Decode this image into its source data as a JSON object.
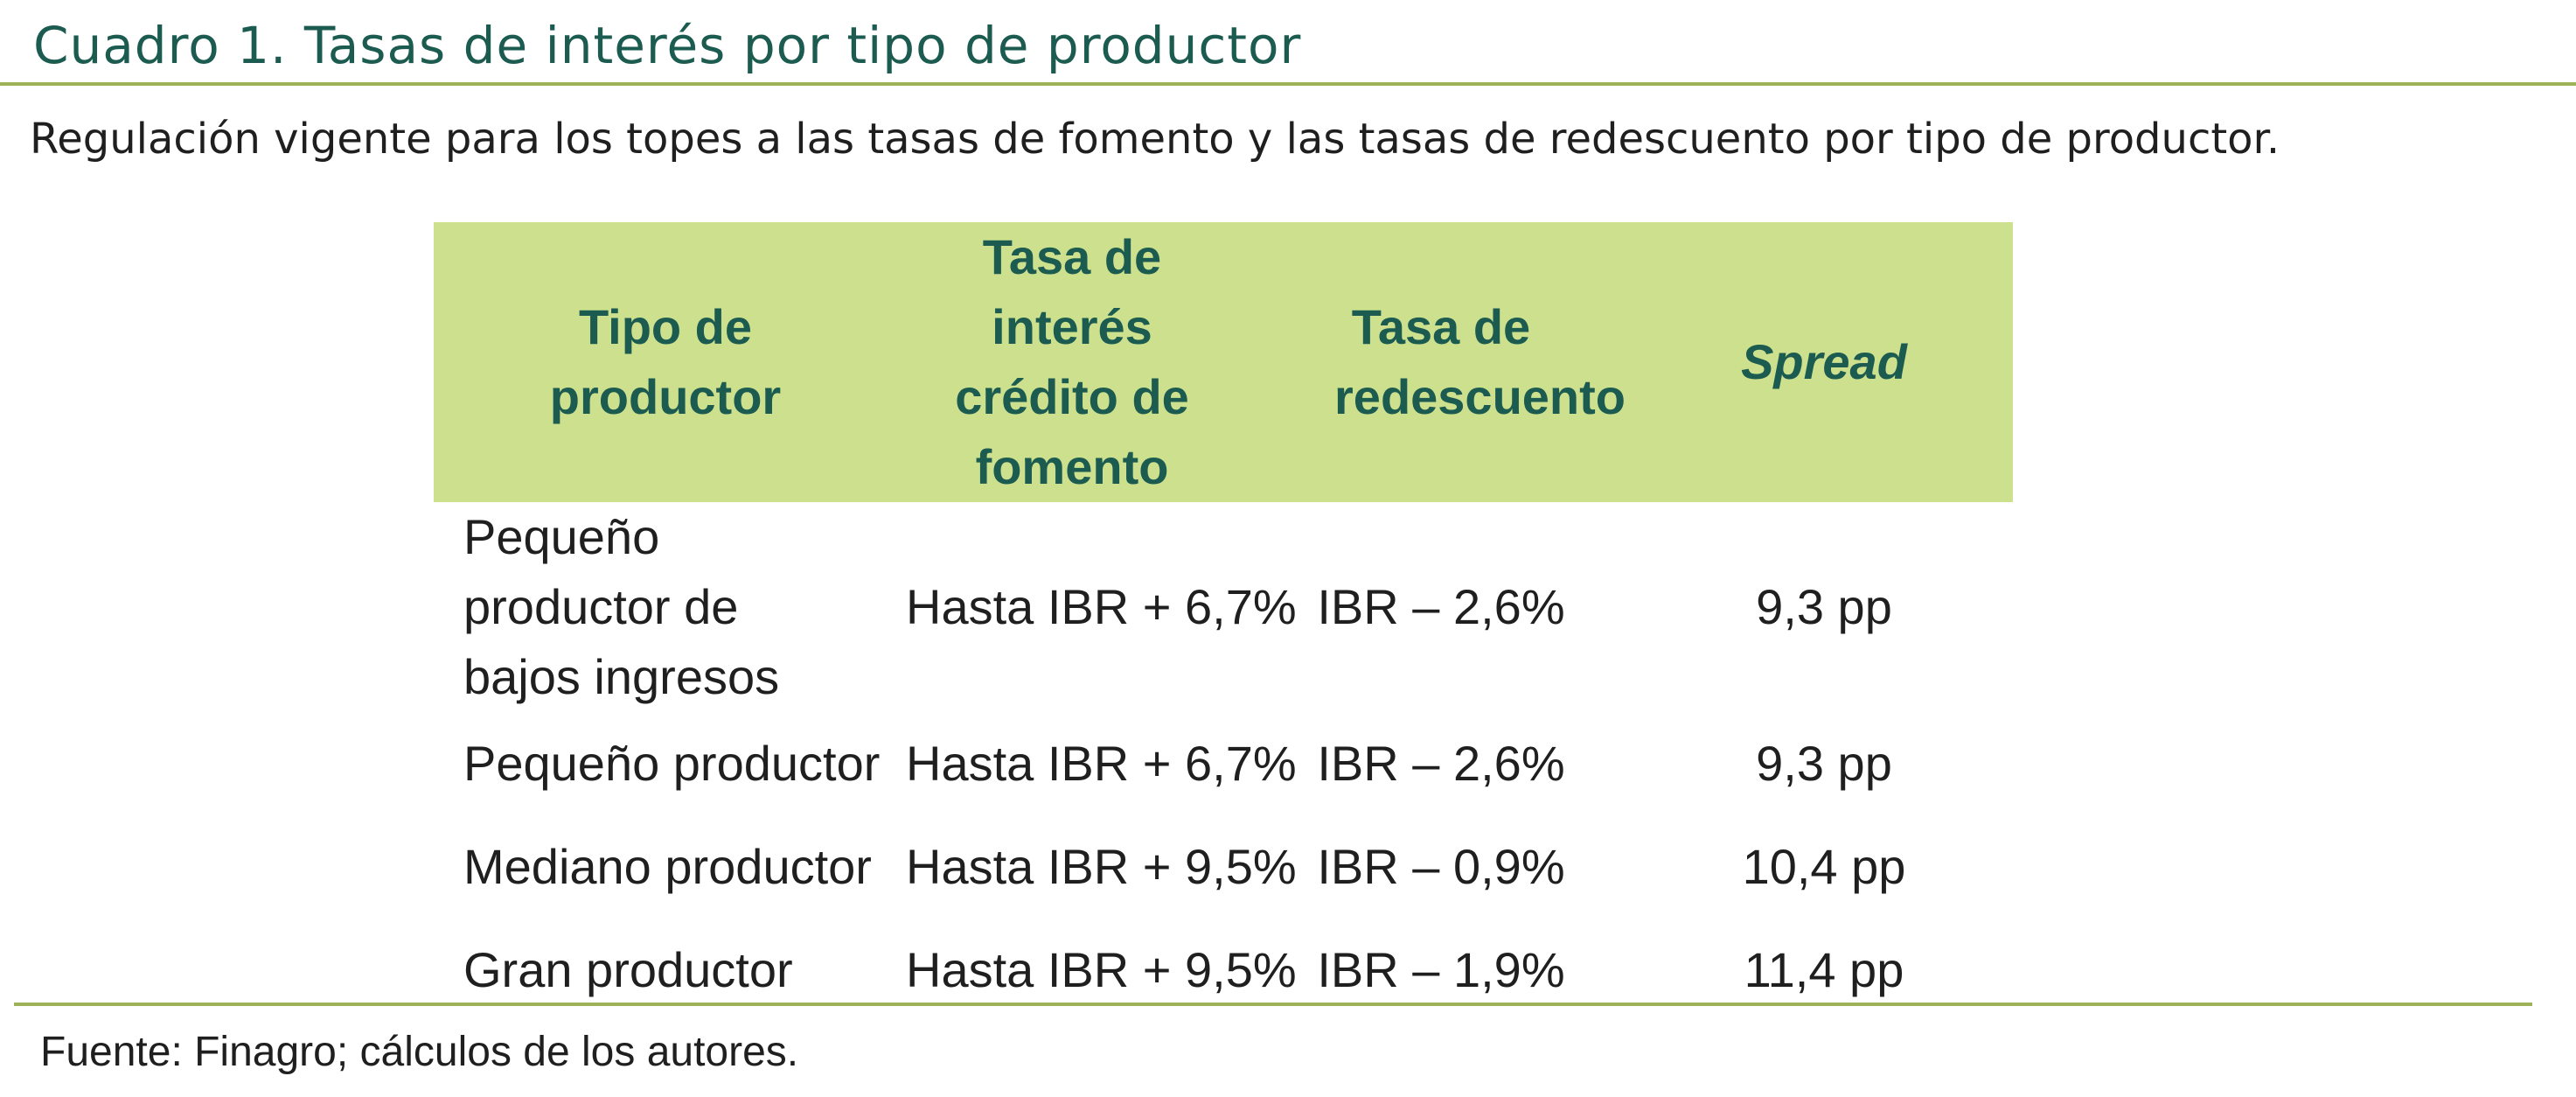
{
  "document": {
    "title": "Cuadro 1. Tasas de interés por tipo de productor",
    "subtitle": "Regulación vigente para los topes a las tasas de fomento y las tasas de redescuento por tipo de productor.",
    "source": "Fuente: Finagro; cálculos de los autores."
  },
  "table": {
    "headers": [
      "Tipo de productor",
      "Tasa de interés crédito de fomento",
      "Tasa de redescuento",
      "Spread"
    ],
    "rows": [
      [
        "Pequeño productor de bajos ingresos",
        "Hasta IBR + 6,7%",
        "IBR – 2,6%",
        "9,3 pp"
      ],
      [
        "Pequeño productor",
        "Hasta IBR + 6,7%",
        "IBR – 2,6%",
        "9,3 pp"
      ],
      [
        "Mediano productor",
        "Hasta IBR + 9,5%",
        "IBR – 0,9%",
        "10,4 pp"
      ],
      [
        "Gran productor",
        "Hasta IBR + 9,5%",
        "IBR – 1,9%",
        "11,4 pp"
      ]
    ]
  },
  "colors": {
    "title_text": "#1c5b50",
    "header_background": "#cde08e",
    "rule": "#9db256",
    "body_text": "#1f1f1f"
  }
}
